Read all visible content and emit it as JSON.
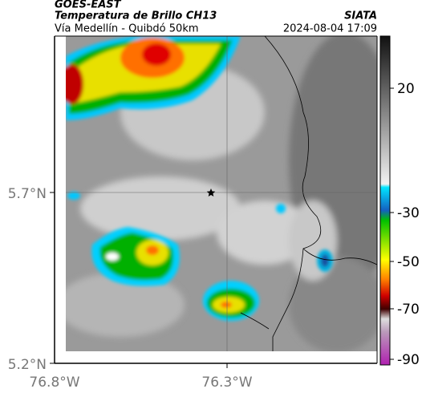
{
  "header": {
    "satellite": "GOES-EAST",
    "product": "Temperatura de Brillo CH13",
    "region": "Vía Medellín - Quibdó 50km",
    "source": "SIATA",
    "datetime": "2024-08-04 17:09"
  },
  "map": {
    "lat_labels": [
      "5.7°N",
      "5.2°N"
    ],
    "lon_labels": [
      "76.8°W",
      "76.3°W"
    ]
  },
  "colorbar": {
    "ticks": [
      "20",
      "-30",
      "-50",
      "-70",
      "-90"
    ]
  }
}
